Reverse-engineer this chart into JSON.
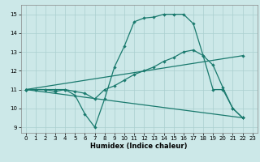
{
  "xlabel": "Humidex (Indice chaleur)",
  "xlim": [
    -0.5,
    23.5
  ],
  "ylim": [
    8.7,
    15.5
  ],
  "yticks": [
    9,
    10,
    11,
    12,
    13,
    14,
    15
  ],
  "xticks": [
    0,
    1,
    2,
    3,
    4,
    5,
    6,
    7,
    8,
    9,
    10,
    11,
    12,
    13,
    14,
    15,
    16,
    17,
    18,
    19,
    20,
    21,
    22,
    23
  ],
  "bg_color": "#cce8e8",
  "line_color": "#1a7a6e",
  "grid_color": "#aacfcf",
  "line1_x": [
    0,
    1,
    2,
    3,
    4,
    5,
    6,
    7,
    8,
    9,
    10,
    11,
    12,
    13,
    14,
    15,
    16,
    17,
    18,
    19,
    20,
    21,
    22
  ],
  "line1_y": [
    11,
    11,
    11,
    10.9,
    11,
    10.7,
    9.7,
    9.0,
    10.5,
    12.2,
    13.3,
    14.6,
    14.8,
    14.85,
    15.0,
    15.0,
    15.0,
    14.5,
    12.8,
    11.0,
    11.0,
    10.0,
    9.5
  ],
  "line2_x": [
    0,
    1,
    2,
    3,
    4,
    5,
    6,
    7,
    8,
    9,
    10,
    11,
    12,
    13,
    14,
    15,
    16,
    17,
    18,
    19,
    20,
    21,
    22
  ],
  "line2_y": [
    11,
    11,
    11,
    11,
    11,
    10.9,
    10.8,
    10.5,
    11.0,
    11.2,
    11.5,
    11.8,
    12.0,
    12.2,
    12.5,
    12.7,
    13.0,
    13.1,
    12.8,
    12.3,
    11.1,
    10.0,
    9.5
  ],
  "line3_x": [
    0,
    22
  ],
  "line3_y": [
    11,
    12.8
  ],
  "line4_x": [
    0,
    22
  ],
  "line4_y": [
    11,
    9.5
  ]
}
